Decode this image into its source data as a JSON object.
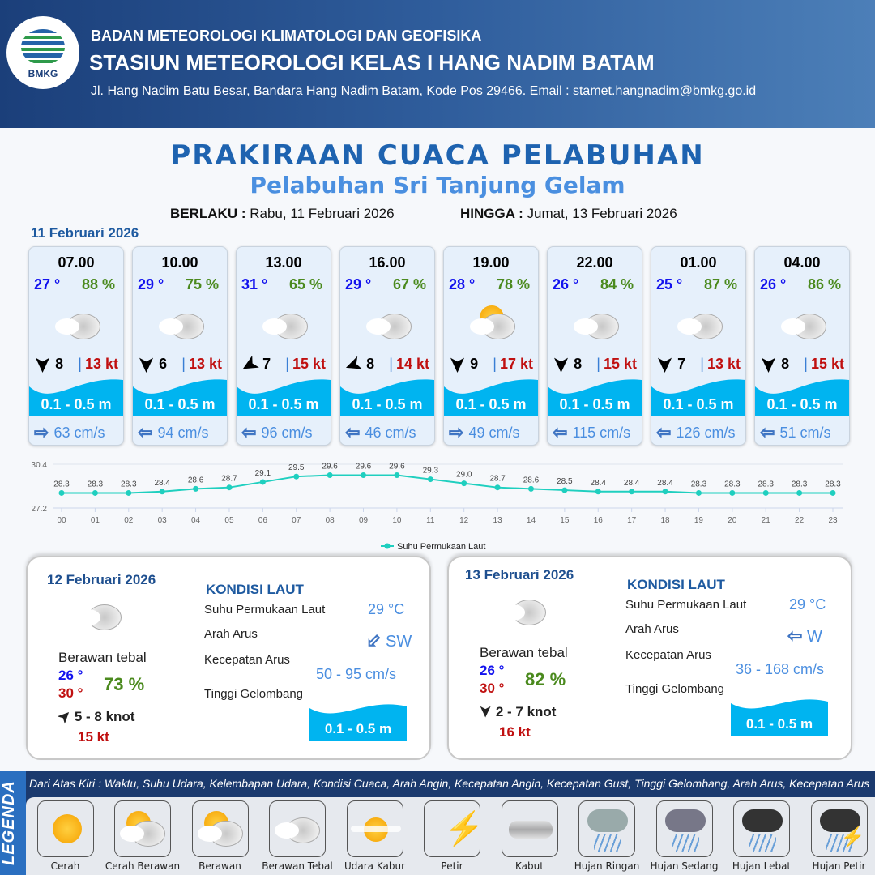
{
  "header": {
    "logo_text": "BMKG",
    "agency": "BADAN METEOROLOGI KLIMATOLOGI DAN GEOFISIKA",
    "station": "STASIUN METEOROLOGI KELAS I HANG NADIM BATAM",
    "address": "Jl. Hang Nadim Batu Besar, Bandara Hang Nadim Batam, Kode Pos 29466. Email : stamet.hangnadim@bmkg.go.id"
  },
  "title": "PRAKIRAAN CUACA PELABUHAN",
  "subtitle": "Pelabuhan Sri Tanjung Gelam",
  "validity": {
    "from_label": "BERLAKU :",
    "from": "Rabu, 11 Februari 2026",
    "to_label": "HINGGA :",
    "to": "Jumat, 13 Februari 2026"
  },
  "day1": {
    "date": "11 Februari 2026",
    "cards": [
      {
        "time": "07.00",
        "temp": "27 °",
        "rh": "88 %",
        "icon": "berawan-tebal",
        "wind_dir_deg": 0,
        "wind": "8",
        "gust": "13 kt",
        "wave": "0.1 - 0.5 m",
        "current_dir": "right",
        "current": "63 cm/s"
      },
      {
        "time": "10.00",
        "temp": "29 °",
        "rh": "75 %",
        "icon": "berawan-tebal",
        "wind_dir_deg": 0,
        "wind": "6",
        "gust": "13 kt",
        "wave": "0.1 - 0.5 m",
        "current_dir": "left",
        "current": "94 cm/s"
      },
      {
        "time": "13.00",
        "temp": "31 °",
        "rh": "65 %",
        "icon": "berawan-tebal",
        "wind_dir_deg": 60,
        "wind": "7",
        "gust": "15 kt",
        "wave": "0.1 - 0.5 m",
        "current_dir": "left",
        "current": "96 cm/s"
      },
      {
        "time": "16.00",
        "temp": "29 °",
        "rh": "67 %",
        "icon": "berawan-tebal",
        "wind_dir_deg": 70,
        "wind": "8",
        "gust": "14 kt",
        "wave": "0.1 - 0.5 m",
        "current_dir": "left",
        "current": "46 cm/s"
      },
      {
        "time": "19.00",
        "temp": "28 °",
        "rh": "78 %",
        "icon": "cerah-berawan",
        "wind_dir_deg": 0,
        "wind": "9",
        "gust": "17 kt",
        "wave": "0.1 - 0.5 m",
        "current_dir": "right",
        "current": "49 cm/s"
      },
      {
        "time": "22.00",
        "temp": "26 °",
        "rh": "84 %",
        "icon": "berawan-tebal",
        "wind_dir_deg": 0,
        "wind": "8",
        "gust": "15 kt",
        "wave": "0.1 - 0.5 m",
        "current_dir": "left",
        "current": "115 cm/s"
      },
      {
        "time": "01.00",
        "temp": "25 °",
        "rh": "87 %",
        "icon": "berawan-tebal",
        "wind_dir_deg": 0,
        "wind": "7",
        "gust": "13 kt",
        "wave": "0.1 - 0.5 m",
        "current_dir": "left",
        "current": "126 cm/s"
      },
      {
        "time": "04.00",
        "temp": "26 °",
        "rh": "86 %",
        "icon": "berawan-tebal",
        "wind_dir_deg": 0,
        "wind": "8",
        "gust": "15 kt",
        "wave": "0.1 - 0.5 m",
        "current_dir": "left",
        "current": "51 cm/s"
      }
    ]
  },
  "chart_data": {
    "type": "line",
    "categories": [
      "00",
      "01",
      "02",
      "03",
      "04",
      "05",
      "06",
      "07",
      "08",
      "09",
      "10",
      "11",
      "12",
      "13",
      "14",
      "15",
      "16",
      "17",
      "18",
      "19",
      "20",
      "21",
      "22",
      "23"
    ],
    "series": [
      {
        "name": "Suhu Permukaan Laut",
        "values": [
          28.3,
          28.3,
          28.3,
          28.4,
          28.6,
          28.7,
          29.1,
          29.5,
          29.6,
          29.6,
          29.6,
          29.3,
          29.0,
          28.7,
          28.6,
          28.5,
          28.4,
          28.4,
          28.4,
          28.3,
          28.3,
          28.3,
          28.3,
          28.3
        ]
      }
    ],
    "yticks": [
      "27.2",
      "30.4"
    ],
    "ylim": [
      27.2,
      30.4
    ],
    "legend": "bottom",
    "color": "#1fcfbf",
    "grid": true
  },
  "panels": [
    {
      "date": "12 Februari 2026",
      "condition": "Berawan tebal",
      "tmin": "26 °",
      "tmax": "30 °",
      "rh": "73 %",
      "wind_dir_deg": 225,
      "wind": "5 - 8 knot",
      "gust": "15 kt",
      "kondisi_label": "KONDISI LAUT",
      "sst_label": "Suhu Permukaan Laut",
      "sst": "29 °C",
      "dir_label": "Arah Arus",
      "dir": "SW",
      "speed_label": "Kecepatan Arus",
      "speed": "50  - 95 cm/s",
      "wave_label": "Tinggi Gelombang",
      "wave": "0.1 - 0.5 m"
    },
    {
      "date": "13 Februari 2026",
      "condition": "Berawan tebal",
      "tmin": "26 °",
      "tmax": "30 °",
      "rh": "82 %",
      "wind_dir_deg": 0,
      "wind": "2 - 7 knot",
      "gust": "16 kt",
      "kondisi_label": "KONDISI LAUT",
      "sst_label": "Suhu Permukaan Laut",
      "sst": "29 °C",
      "dir_label": "Arah Arus",
      "dir": "W",
      "speed_label": "Kecepatan Arus",
      "speed": "36 - 168 cm/s",
      "wave_label": "Tinggi Gelombang",
      "wave": "0.1 - 0.5 m"
    }
  ],
  "legend": {
    "title": "LEGENDA",
    "description": "Dari Atas Kiri : Waktu, Suhu Udara, Kelembapan Udara, Kondisi Cuaca, Arah Angin, Kecepatan Angin, Kecepatan Gust, Tinggi Gelombang, Arah Arus, Kecepatan Arus",
    "items": [
      "Cerah",
      "Cerah Berawan",
      "Berawan",
      "Berawan Tebal",
      "Udara Kabur",
      "Petir",
      "Kabut",
      "Hujan Ringan",
      "Hujan Sedang",
      "Hujan Lebat",
      "Hujan Petir"
    ]
  },
  "colors": {
    "temp": "#1212ee",
    "rh": "#4b8a1e",
    "gust": "#c01010",
    "wave": "#00b4f0",
    "current": "#4a8ee0"
  }
}
